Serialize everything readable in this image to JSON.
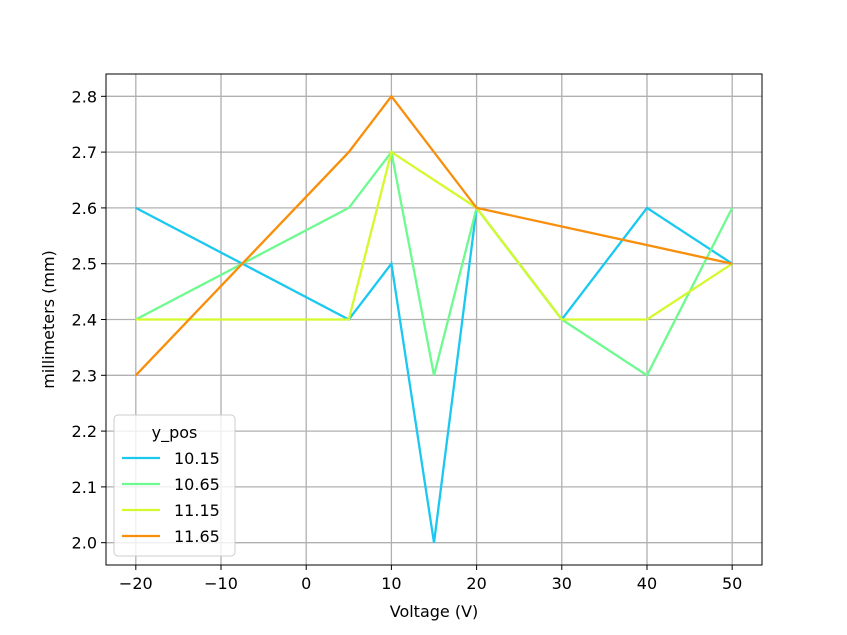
{
  "chart_data": {
    "type": "line",
    "x": [
      -20,
      5,
      10,
      15,
      20,
      30,
      40,
      50
    ],
    "series": [
      {
        "name": "10.15",
        "color": "#1ac8f0",
        "values": [
          2.6,
          2.4,
          2.5,
          2.0,
          2.6,
          2.4,
          2.6,
          2.5
        ]
      },
      {
        "name": "10.65",
        "color": "#6dfb8f",
        "values": [
          2.4,
          2.6,
          2.7,
          2.3,
          2.6,
          2.4,
          2.3,
          2.6
        ]
      },
      {
        "name": "11.15",
        "color": "#d4f92c",
        "values": [
          2.4,
          2.4,
          2.7,
          null,
          2.6,
          2.4,
          2.4,
          2.5
        ]
      },
      {
        "name": "11.65",
        "color": "#f98e0b",
        "values": [
          2.3,
          2.7,
          2.8,
          null,
          2.6,
          null,
          null,
          2.5
        ]
      }
    ],
    "xlabel": "Voltage (V)",
    "ylabel": "millimeters (mm)",
    "xlim": [
      -23.5,
      53.5
    ],
    "ylim": [
      1.96,
      2.84
    ],
    "xticks": [
      -20,
      -10,
      0,
      10,
      20,
      30,
      40,
      50
    ],
    "xtick_labels": [
      "−20",
      "−10",
      "0",
      "10",
      "20",
      "30",
      "40",
      "50"
    ],
    "yticks": [
      2.0,
      2.1,
      2.2,
      2.3,
      2.4,
      2.5,
      2.6,
      2.7,
      2.8
    ],
    "ytick_labels": [
      "2.0",
      "2.1",
      "2.2",
      "2.3",
      "2.4",
      "2.5",
      "2.6",
      "2.7",
      "2.8"
    ],
    "grid": true,
    "legend": {
      "title": "y_pos",
      "position": "lower-left"
    }
  }
}
